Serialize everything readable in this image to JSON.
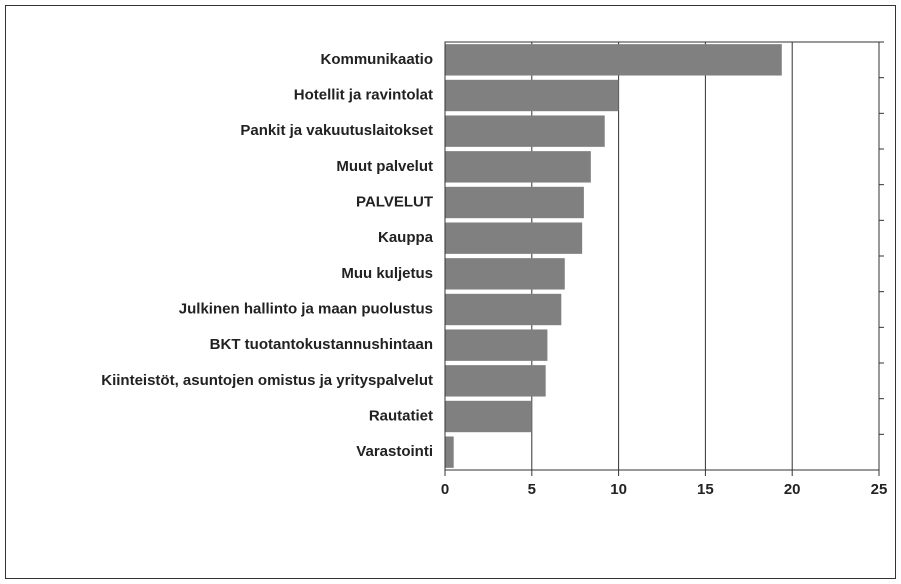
{
  "chart_data": {
    "type": "barh",
    "categories": [
      "Kommunikaatio",
      "Hotellit ja ravintolat",
      "Pankit ja vakuutuslaitokset",
      "Muut palvelut",
      "PALVELUT",
      "Kauppa",
      "Muu kuljetus",
      "Julkinen hallinto ja maan puolustus",
      "BKT tuotantokustannushintaan",
      "Kiinteistöt, asuntojen omistus ja yrityspalvelut",
      "Rautatiet",
      "Varastointi"
    ],
    "values": [
      19.4,
      10.0,
      9.2,
      8.4,
      8.0,
      7.9,
      6.9,
      6.7,
      5.9,
      5.8,
      5.0,
      0.5
    ],
    "color": "#808080",
    "xlim": [
      0,
      25
    ],
    "xticks": [
      0,
      5,
      10,
      15,
      20,
      25
    ],
    "grid": true
  }
}
